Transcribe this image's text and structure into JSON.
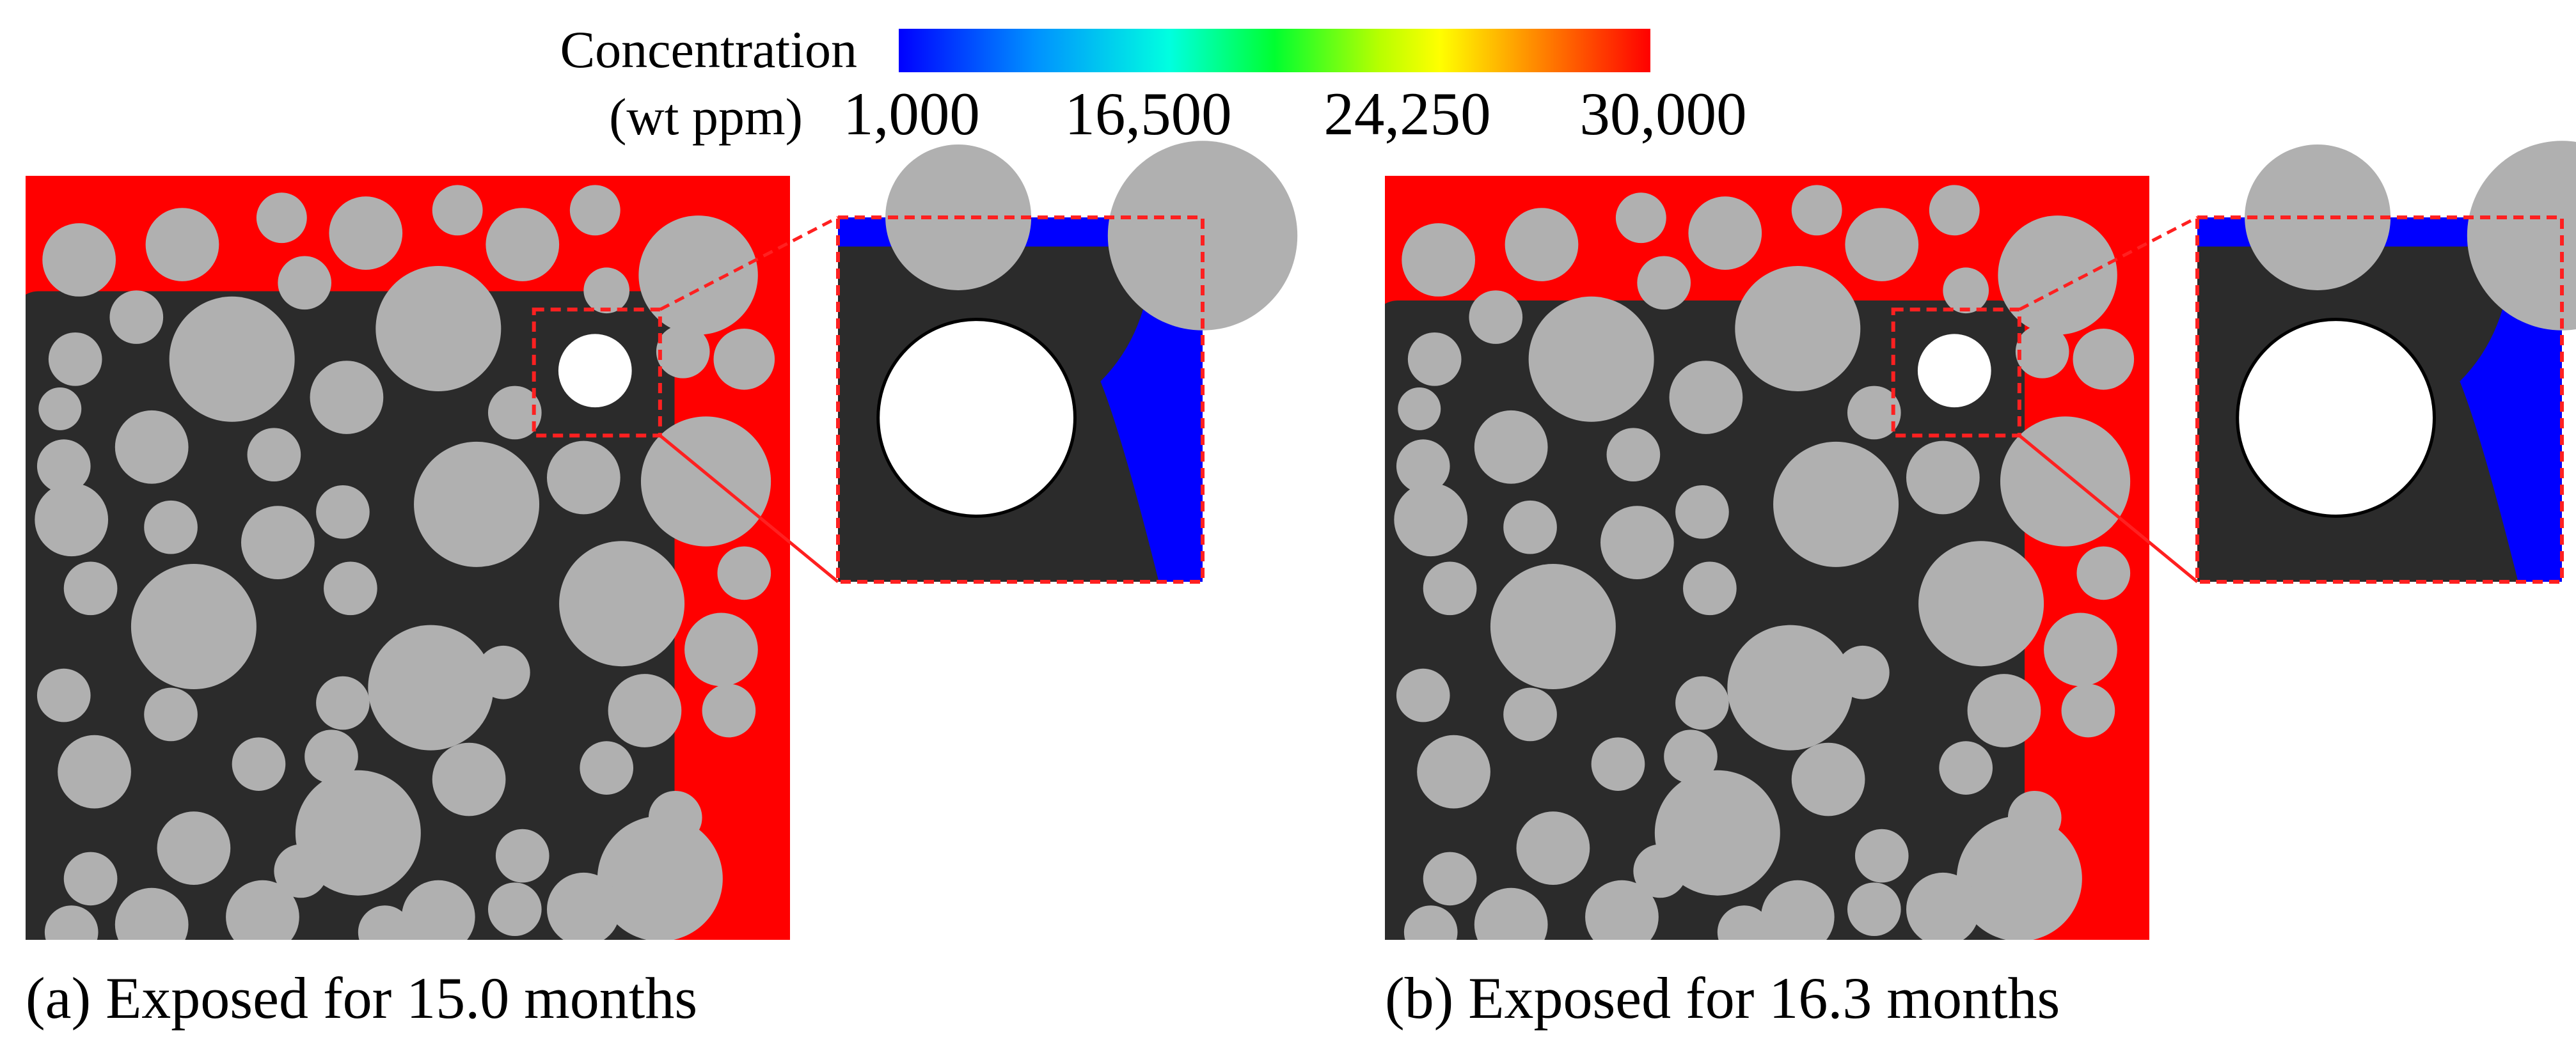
{
  "legend": {
    "title_line1": "Concentration",
    "title_line2": "(wt ppm)",
    "ticks": [
      "1,000",
      "16,500",
      "24,250",
      "30,000"
    ],
    "colors": [
      "#0000ff",
      "#0060ff",
      "#00c8ff",
      "#00ffd0",
      "#00ff30",
      "#b4ff00",
      "#ffff00",
      "#ffb000",
      "#ff5000",
      "#ff0000"
    ]
  },
  "colors": {
    "matrix": "#2b2b2b",
    "aggregate": "#b0b0b0",
    "pore": "#ffffff",
    "zoom_frame": "#ff2020"
  },
  "panels": [
    {
      "caption": "(a) Exposed for 15.0 months"
    },
    {
      "caption": "(b) Exposed for 16.3 months"
    }
  ]
}
